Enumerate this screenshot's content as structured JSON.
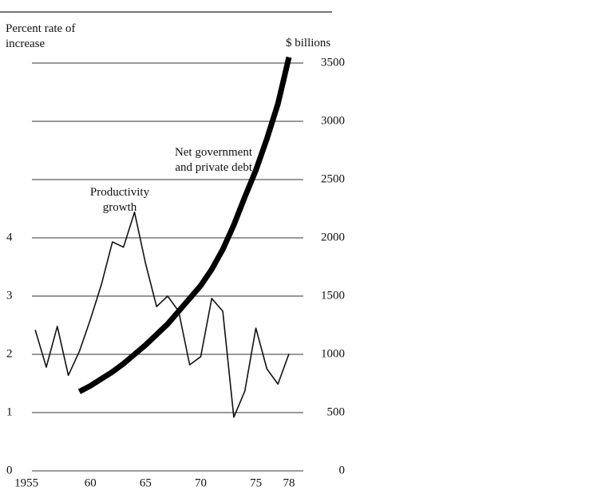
{
  "chart_data": {
    "type": "line",
    "ylabel": "Percent rate of increase",
    "y2label": "$ billions",
    "x": [
      1955,
      1956,
      1957,
      1958,
      1959,
      1960,
      1961,
      1962,
      1963,
      1964,
      1965,
      1966,
      1967,
      1968,
      1969,
      1970,
      1971,
      1972,
      1973,
      1974,
      1975,
      1976,
      1977,
      1978
    ],
    "series": [
      {
        "name": "Productivity growth",
        "color": "#111111",
        "width": 1.6,
        "values": [
          2.42,
          1.78,
          2.48,
          1.64,
          2.05,
          2.6,
          3.2,
          3.93,
          3.84,
          4.44,
          3.56,
          2.82,
          3.0,
          2.74,
          1.82,
          1.96,
          2.96,
          2.74,
          0.92,
          1.37,
          2.45,
          1.75,
          1.49,
          2.01
        ]
      },
      {
        "name": "Net government and private debt",
        "color": "#000000",
        "width": 7,
        "axis": "y2",
        "values": [
          null,
          null,
          null,
          null,
          680,
          730,
          790,
          850,
          920,
          1000,
          1080,
          1170,
          1260,
          1370,
          1480,
          1590,
          1730,
          1900,
          2110,
          2350,
          2580,
          2850,
          3150,
          3550
        ]
      }
    ],
    "xlim": [
      1954.7,
      1979.3
    ],
    "xticks": [
      1955,
      {
        "value": 1960,
        "label": "60"
      },
      {
        "value": 1965,
        "label": "65"
      },
      {
        "value": 1970,
        "label": "70"
      },
      {
        "value": 1975,
        "label": "75"
      },
      {
        "value": 1978,
        "label": "78"
      }
    ],
    "ylim": [
      0,
      7
    ],
    "yticks": [
      0,
      1,
      2,
      3,
      4
    ],
    "y2lim": [
      0,
      3500
    ],
    "y2ticks": [
      0,
      500,
      1000,
      1500,
      2000,
      2500,
      3000,
      3500
    ],
    "grid": true
  }
}
